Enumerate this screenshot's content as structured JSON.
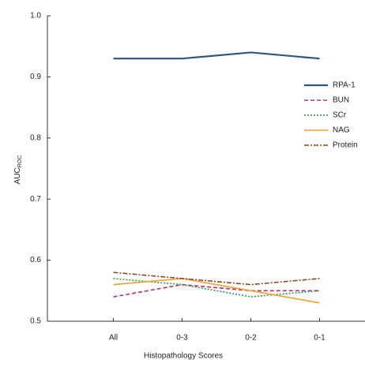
{
  "chart_data": {
    "type": "line",
    "ylabel": "AUC",
    "ylabel_sub": "ROC",
    "xlabel": "Histopathology Scores",
    "categories": [
      "All",
      "0-3",
      "0-2",
      "0-1"
    ],
    "series": [
      {
        "name": "RPA-1",
        "color": "#2f5582",
        "dash": "none",
        "values": [
          0.93,
          0.93,
          0.94,
          0.93
        ]
      },
      {
        "name": "BUN",
        "color": "#b0307a",
        "dash": "5 3",
        "values": [
          0.54,
          0.56,
          0.55,
          0.55
        ]
      },
      {
        "name": "SCr",
        "color": "#2e9a3e",
        "dash": "2 2",
        "values": [
          0.57,
          0.56,
          0.54,
          0.55
        ]
      },
      {
        "name": "NAG",
        "color": "#f0a030",
        "dash": "none",
        "values": [
          0.56,
          0.57,
          0.55,
          0.53
        ]
      },
      {
        "name": "Protein",
        "color": "#8a4a2a",
        "dash": "6 2 2 2",
        "values": [
          0.58,
          0.57,
          0.56,
          0.57
        ]
      }
    ],
    "ylim": [
      0.5,
      1.0
    ],
    "yticks": [
      0.5,
      0.6,
      0.7,
      0.8,
      0.9,
      {
        "value": 1.0,
        "label": "1.0"
      }
    ]
  }
}
